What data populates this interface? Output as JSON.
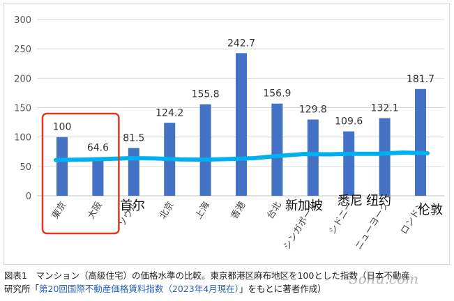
{
  "chart_data": {
    "type": "bar",
    "categories": [
      "東京",
      "大阪",
      "ソウル",
      "北京",
      "上海",
      "香港",
      "台北",
      "シンガポール",
      "シドニー",
      "ニューヨーク",
      "ロンドン"
    ],
    "values": [
      100,
      64.6,
      81.5,
      124.2,
      155.8,
      242.7,
      156.9,
      129.8,
      109.6,
      132.1,
      181.7
    ],
    "value_labels": [
      "100",
      "64.6",
      "81.5",
      "124.2",
      "155.8",
      "242.7",
      "156.9",
      "129.8",
      "109.6",
      "132.1",
      "181.7"
    ],
    "yticks": [
      "0",
      "50",
      "100",
      "150",
      "200",
      "250",
      "300"
    ],
    "ylim": [
      0,
      300
    ],
    "grid": true,
    "bar_color": "#4472c4",
    "overlay_line": {
      "color": "#00b0f0",
      "values": [
        61,
        61.5,
        62.5,
        64,
        63.5,
        62,
        61.5,
        62.5,
        64,
        68,
        71,
        70.5,
        71.5,
        71.5,
        73.5,
        72.5
      ]
    },
    "highlight": {
      "categories": [
        "東京",
        "大阪"
      ],
      "color": "#e03a1e"
    },
    "handwritten_labels": [
      {
        "category": "ソウル",
        "text": "首尔"
      },
      {
        "category": "シンガポール",
        "text": "新加坡"
      },
      {
        "category": "シドニー",
        "text": "悉尼"
      },
      {
        "category": "ニューヨーク",
        "text": "纽约"
      },
      {
        "category": "ロンドン",
        "text": "伦敦"
      }
    ]
  },
  "caption": {
    "line1": "図表1　マンション（高級住宅）の価格水準の比較。東京都港区麻布地区を100とした指数（日本不動産",
    "line2_prefix": "研究所「",
    "line2_link": "第20回国際不動産価格賃料指数（2023年4月現在）",
    "line2_suffix": "」をもとに著者作成）"
  },
  "watermark": "Sohu.com"
}
